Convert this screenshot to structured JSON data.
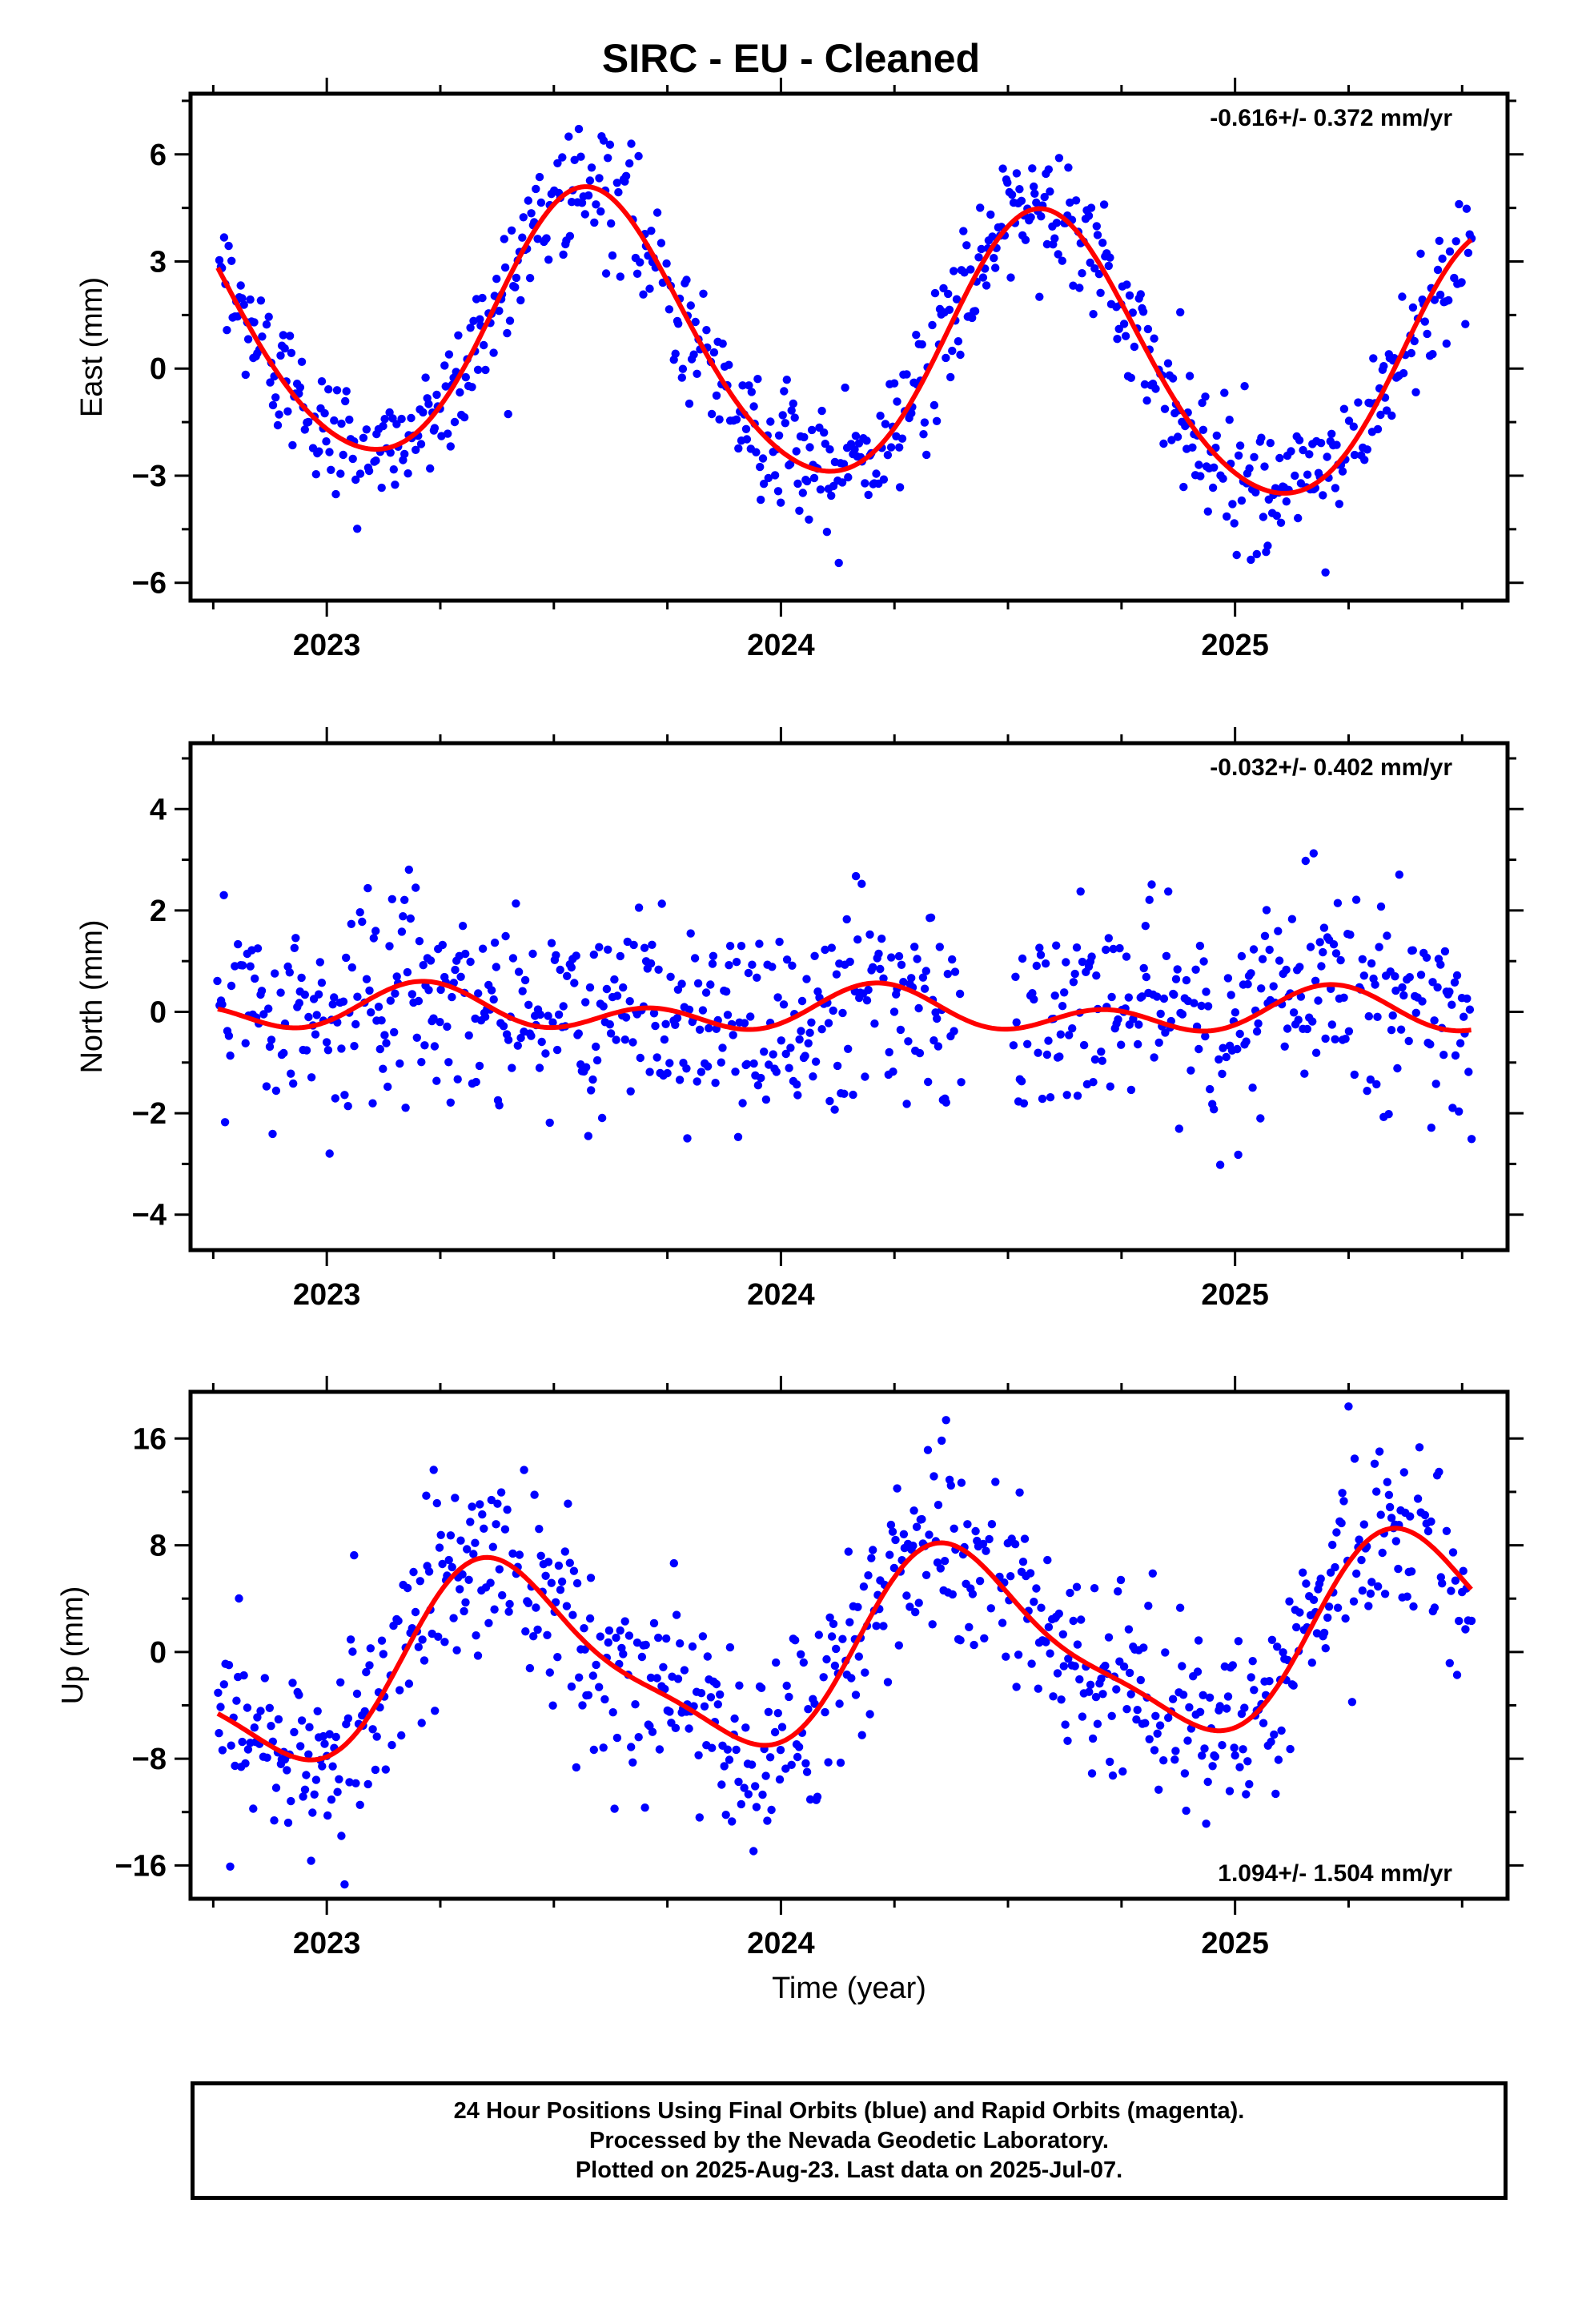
{
  "title": "SIRC  - EU - Cleaned",
  "footer": {
    "line1": "24 Hour Positions Using Final Orbits (blue) and Rapid Orbits (magenta).",
    "line2": "Processed by the Nevada Geodetic Laboratory.",
    "line3": "Plotted on 2025-Aug-23. Last data on 2025-Jul-07."
  },
  "colors": {
    "points": "#0000ff",
    "fit": "#ff0000",
    "frame": "#000000",
    "background": "#ffffff"
  },
  "chart_data": [
    {
      "type": "scatter",
      "name": "east",
      "ylabel": "East (mm)",
      "xlabel": "",
      "rate_label": "-0.616+/- 0.372 mm/yr",
      "rate_position": "top-right",
      "xlim": [
        2022.7,
        2025.6
      ],
      "ylim": [
        -6.5,
        7.7
      ],
      "xticks": [
        2023,
        2024,
        2025
      ],
      "yticks": [
        -6,
        -3,
        0,
        3,
        6
      ],
      "x_range_data": [
        2022.76,
        2025.52
      ],
      "fit": {
        "rate": -0.616,
        "offset": 0.6,
        "mid": 2024.15,
        "annual_cos": -3.3,
        "annual_sin": -1.9,
        "semi_cos": 0.3,
        "semi_sin": 0.2
      },
      "scatter_sd": 0.9,
      "gaps": []
    },
    {
      "type": "scatter",
      "name": "north",
      "ylabel": "North (mm)",
      "xlabel": "",
      "rate_label": "-0.032+/- 0.402 mm/yr",
      "rate_position": "top-right",
      "xlim": [
        2022.7,
        2025.6
      ],
      "ylim": [
        -4.7,
        5.3
      ],
      "xticks": [
        2023,
        2024,
        2025
      ],
      "yticks": [
        -4,
        -2,
        0,
        2,
        4
      ],
      "x_range_data": [
        2022.76,
        2025.52
      ],
      "fit": {
        "rate": -0.032,
        "offset": 0.0,
        "mid": 2024.15,
        "annual_cos": 0.05,
        "annual_sin": 0.25,
        "semi_cos": -0.28,
        "semi_sin": 0.15
      },
      "scatter_sd": 1.0,
      "gaps": [
        [
          2024.4,
          2024.51
        ]
      ]
    },
    {
      "type": "scatter",
      "name": "up",
      "ylabel": "Up (mm)",
      "xlabel": "Time (year)",
      "rate_label": "1.094+/- 1.504 mm/yr",
      "rate_position": "bottom-right",
      "xlim": [
        2022.7,
        2025.6
      ],
      "ylim": [
        -18.5,
        19.5
      ],
      "xticks": [
        2023,
        2024,
        2025
      ],
      "yticks": [
        -16,
        -8,
        0,
        8,
        16
      ],
      "x_range_data": [
        2022.76,
        2025.52
      ],
      "fit": {
        "rate": 1.094,
        "offset": 0.0,
        "mid": 2024.15,
        "annual_cos": -5.3,
        "annual_sin": 4.2,
        "semi_cos": -1.3,
        "semi_sin": -1.1
      },
      "scatter_sd": 3.6,
      "gaps": []
    }
  ]
}
